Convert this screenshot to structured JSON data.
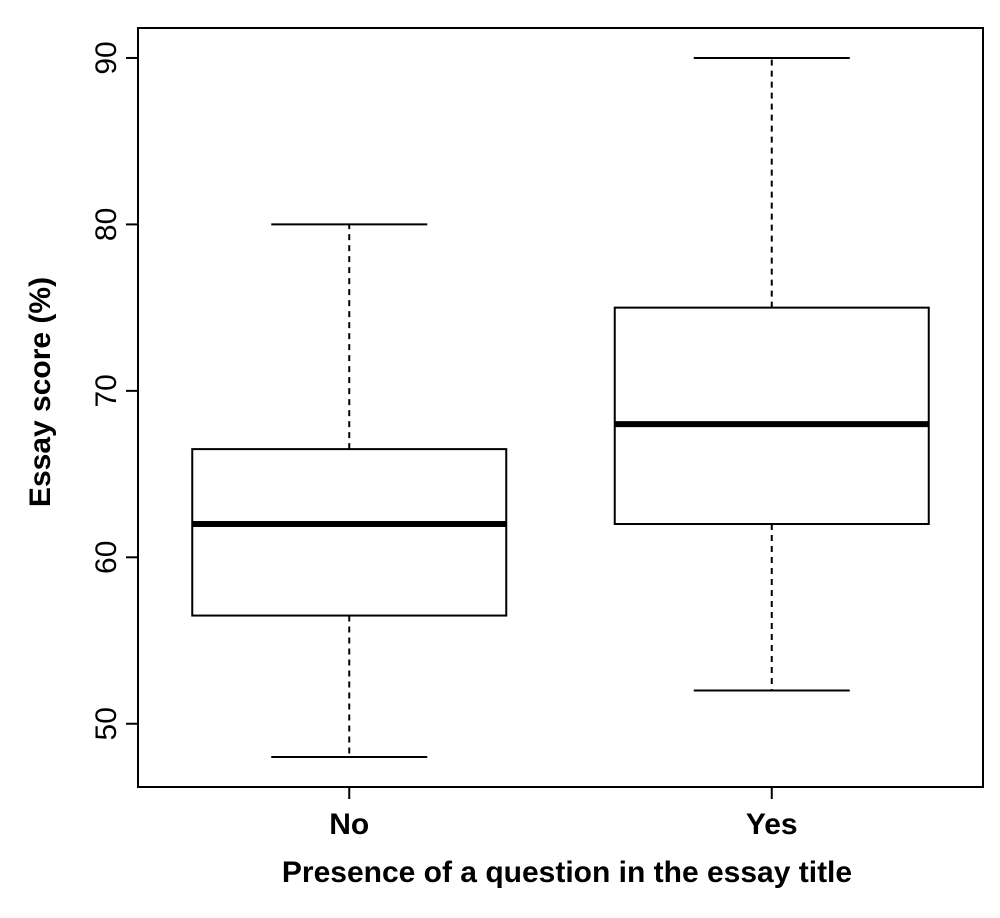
{
  "chart_data": {
    "type": "boxplot",
    "title": "",
    "xlabel": "Presence of a question in the essay title",
    "ylabel": "Essay score (%)",
    "ylim": [
      46.2,
      91.8
    ],
    "yticks": [
      50,
      60,
      70,
      80,
      90
    ],
    "ytick_labels": [
      "50",
      "60",
      "70",
      "80",
      "90"
    ],
    "categories": [
      "No",
      "Yes"
    ],
    "boxes": [
      {
        "category": "No",
        "min": 48,
        "q1": 56.5,
        "median": 62,
        "q3": 66.5,
        "max": 80
      },
      {
        "category": "Yes",
        "min": 52,
        "q1": 62,
        "median": 68,
        "q3": 75,
        "max": 90
      }
    ],
    "grid": false,
    "legend": "none"
  }
}
